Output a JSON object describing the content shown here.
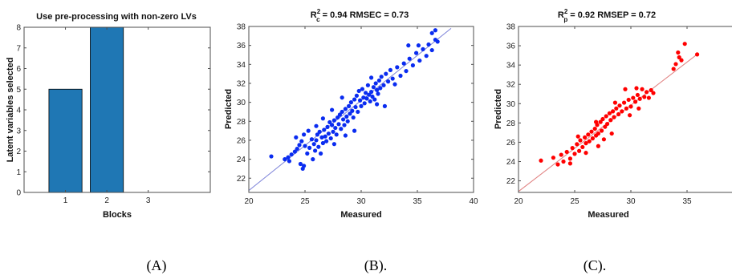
{
  "chart_data": [
    {
      "type": "bar",
      "title": "Use pre-processing with non-zero LVs",
      "xlabel": "Blocks",
      "ylabel": "Latent variables selected",
      "categories": [
        "1",
        "2",
        "3"
      ],
      "values": [
        5,
        8,
        0
      ],
      "ylim": [
        0,
        8
      ],
      "yticks": [
        "0",
        "1",
        "2",
        "3",
        "4",
        "5",
        "6",
        "7",
        "8"
      ],
      "bar_color": "#1f77b4",
      "caption": "(A)"
    },
    {
      "type": "scatter",
      "title_parts": {
        "r": "R",
        "sup": "2",
        "sub": "c",
        "rest": " = 0.94 RMSEC = 0.73"
      },
      "xlabel": "Measured",
      "ylabel": "Predicted",
      "xlim": [
        20,
        40
      ],
      "ylim": [
        20.5,
        38
      ],
      "xticks": [
        "20",
        "25",
        "30",
        "35",
        "40"
      ],
      "yticks": [
        "22",
        "24",
        "26",
        "28",
        "30",
        "32",
        "34",
        "36",
        "38"
      ],
      "point_color": "#0a2cf0",
      "line_color": "#7a80d8",
      "fit_line": [
        [
          20,
          20.7
        ],
        [
          38,
          37.8
        ]
      ],
      "caption": "(B).",
      "points": [
        [
          22.0,
          24.3
        ],
        [
          23.2,
          24.0
        ],
        [
          23.5,
          24.2
        ],
        [
          23.8,
          24.5
        ],
        [
          24.1,
          24.8
        ],
        [
          23.6,
          23.8
        ],
        [
          24.6,
          23.5
        ],
        [
          24.8,
          23.0
        ],
        [
          24.9,
          23.3
        ],
        [
          24.3,
          25.1
        ],
        [
          24.5,
          25.5
        ],
        [
          24.7,
          25.9
        ],
        [
          25.0,
          25.4
        ],
        [
          25.2,
          24.6
        ],
        [
          25.4,
          25.2
        ],
        [
          25.6,
          26.1
        ],
        [
          25.8,
          25.6
        ],
        [
          25.9,
          24.9
        ],
        [
          26.0,
          26.0
        ],
        [
          26.1,
          26.6
        ],
        [
          26.2,
          25.3
        ],
        [
          26.3,
          26.9
        ],
        [
          26.5,
          26.3
        ],
        [
          26.6,
          25.7
        ],
        [
          26.7,
          27.1
        ],
        [
          26.8,
          26.4
        ],
        [
          26.9,
          25.9
        ],
        [
          27.0,
          27.4
        ],
        [
          27.1,
          26.7
        ],
        [
          27.2,
          27.9
        ],
        [
          27.3,
          26.2
        ],
        [
          27.4,
          27.6
        ],
        [
          27.5,
          26.9
        ],
        [
          27.6,
          28.1
        ],
        [
          27.7,
          27.3
        ],
        [
          27.8,
          26.6
        ],
        [
          27.9,
          28.4
        ],
        [
          28.0,
          27.7
        ],
        [
          28.1,
          28.7
        ],
        [
          28.2,
          27.2
        ],
        [
          28.3,
          29.0
        ],
        [
          28.4,
          28.2
        ],
        [
          28.5,
          27.6
        ],
        [
          28.6,
          29.3
        ],
        [
          28.7,
          28.5
        ],
        [
          28.8,
          28.0
        ],
        [
          28.9,
          29.6
        ],
        [
          29.0,
          28.8
        ],
        [
          29.1,
          30.0
        ],
        [
          29.2,
          29.1
        ],
        [
          29.3,
          28.4
        ],
        [
          29.4,
          30.3
        ],
        [
          29.5,
          29.5
        ],
        [
          29.6,
          30.7
        ],
        [
          29.7,
          29.0
        ],
        [
          29.8,
          31.2
        ],
        [
          29.9,
          30.2
        ],
        [
          30.0,
          29.6
        ],
        [
          30.1,
          31.4
        ],
        [
          30.2,
          30.5
        ],
        [
          30.3,
          29.9
        ],
        [
          30.4,
          31.0
        ],
        [
          30.5,
          30.4
        ],
        [
          30.6,
          31.8
        ],
        [
          30.7,
          30.8
        ],
        [
          30.8,
          30.1
        ],
        [
          30.9,
          31.1
        ],
        [
          31.0,
          30.6
        ],
        [
          31.1,
          31.6
        ],
        [
          31.2,
          30.3
        ],
        [
          31.3,
          32.0
        ],
        [
          31.4,
          31.3
        ],
        [
          31.5,
          30.9
        ],
        [
          31.6,
          32.3
        ],
        [
          31.7,
          31.5
        ],
        [
          31.8,
          32.7
        ],
        [
          32.0,
          31.8
        ],
        [
          32.2,
          33.0
        ],
        [
          32.4,
          32.2
        ],
        [
          32.6,
          33.4
        ],
        [
          32.8,
          32.5
        ],
        [
          33.0,
          31.9
        ],
        [
          33.2,
          33.7
        ],
        [
          33.5,
          32.8
        ],
        [
          33.8,
          34.1
        ],
        [
          34.0,
          33.3
        ],
        [
          34.3,
          34.6
        ],
        [
          34.6,
          33.9
        ],
        [
          34.9,
          35.2
        ],
        [
          35.2,
          34.4
        ],
        [
          35.5,
          35.6
        ],
        [
          35.8,
          34.9
        ],
        [
          36.0,
          36.1
        ],
        [
          36.3,
          35.5
        ],
        [
          36.6,
          36.6
        ],
        [
          36.8,
          36.4
        ],
        [
          36.6,
          37.6
        ],
        [
          36.3,
          37.3
        ],
        [
          35.1,
          36.0
        ],
        [
          34.2,
          36.0
        ],
        [
          30.9,
          32.6
        ],
        [
          31.4,
          29.8
        ],
        [
          32.1,
          29.6
        ],
        [
          29.4,
          27.0
        ],
        [
          28.6,
          26.5
        ],
        [
          26.4,
          24.6
        ],
        [
          25.7,
          24.0
        ],
        [
          27.6,
          25.6
        ],
        [
          24.2,
          26.3
        ],
        [
          25.3,
          27.0
        ],
        [
          26.6,
          28.3
        ],
        [
          27.4,
          29.2
        ],
        [
          28.3,
          30.5
        ],
        [
          24.9,
          26.6
        ],
        [
          26.0,
          27.5
        ]
      ]
    },
    {
      "type": "scatter",
      "title_parts": {
        "r": "R",
        "sup": "2",
        "sub": "p",
        "rest": " = 0.92 RMSEP = 0.72"
      },
      "xlabel": "Measured",
      "ylabel": "Predicted",
      "xlim": [
        20,
        40
      ],
      "ylim": [
        20.8,
        38
      ],
      "xticks": [
        "20",
        "25",
        "30",
        "35",
        "40"
      ],
      "yticks": [
        "22",
        "24",
        "26",
        "28",
        "30",
        "32",
        "34",
        "36",
        "38"
      ],
      "point_color": "#ff0000",
      "line_color": "#e08080",
      "fit_line": [
        [
          20,
          20.9
        ],
        [
          36,
          35.2
        ]
      ],
      "caption": "(C).",
      "points": [
        [
          22.0,
          24.1
        ],
        [
          23.1,
          24.4
        ],
        [
          23.5,
          23.7
        ],
        [
          23.8,
          24.7
        ],
        [
          24.0,
          24.0
        ],
        [
          24.3,
          25.0
        ],
        [
          24.6,
          24.3
        ],
        [
          24.8,
          25.4
        ],
        [
          25.0,
          24.8
        ],
        [
          25.2,
          25.8
        ],
        [
          25.4,
          25.1
        ],
        [
          25.5,
          26.2
        ],
        [
          25.7,
          25.5
        ],
        [
          25.9,
          26.5
        ],
        [
          26.0,
          25.9
        ],
        [
          26.2,
          26.8
        ],
        [
          26.3,
          26.1
        ],
        [
          26.5,
          27.1
        ],
        [
          26.6,
          26.4
        ],
        [
          26.8,
          27.4
        ],
        [
          26.9,
          26.7
        ],
        [
          27.0,
          27.8
        ],
        [
          27.1,
          26.9
        ],
        [
          27.3,
          28.1
        ],
        [
          27.4,
          27.2
        ],
        [
          27.5,
          28.4
        ],
        [
          27.7,
          27.6
        ],
        [
          27.8,
          28.7
        ],
        [
          27.9,
          27.9
        ],
        [
          28.1,
          29.0
        ],
        [
          28.2,
          28.3
        ],
        [
          28.4,
          29.2
        ],
        [
          28.5,
          28.6
        ],
        [
          28.7,
          29.5
        ],
        [
          28.9,
          28.9
        ],
        [
          29.0,
          29.8
        ],
        [
          29.2,
          29.2
        ],
        [
          29.4,
          30.1
        ],
        [
          29.6,
          29.5
        ],
        [
          29.8,
          30.4
        ],
        [
          30.0,
          29.7
        ],
        [
          30.2,
          30.6
        ],
        [
          30.4,
          30.2
        ],
        [
          30.6,
          30.9
        ],
        [
          30.8,
          30.5
        ],
        [
          31.0,
          31.5
        ],
        [
          31.2,
          30.7
        ],
        [
          31.4,
          31.2
        ],
        [
          31.6,
          30.6
        ],
        [
          31.8,
          31.4
        ],
        [
          32.0,
          31.1
        ],
        [
          33.8,
          33.6
        ],
        [
          34.0,
          34.1
        ],
        [
          34.3,
          34.8
        ],
        [
          34.5,
          34.5
        ],
        [
          34.2,
          35.3
        ],
        [
          34.8,
          36.2
        ],
        [
          35.9,
          35.1
        ],
        [
          29.5,
          31.5
        ],
        [
          30.5,
          31.6
        ],
        [
          28.3,
          26.9
        ],
        [
          27.1,
          25.6
        ],
        [
          26.0,
          24.9
        ],
        [
          24.6,
          23.8
        ],
        [
          25.3,
          26.6
        ],
        [
          26.9,
          28.1
        ],
        [
          28.6,
          30.1
        ],
        [
          27.6,
          26.3
        ],
        [
          29.9,
          28.8
        ],
        [
          30.7,
          29.5
        ]
      ]
    }
  ]
}
